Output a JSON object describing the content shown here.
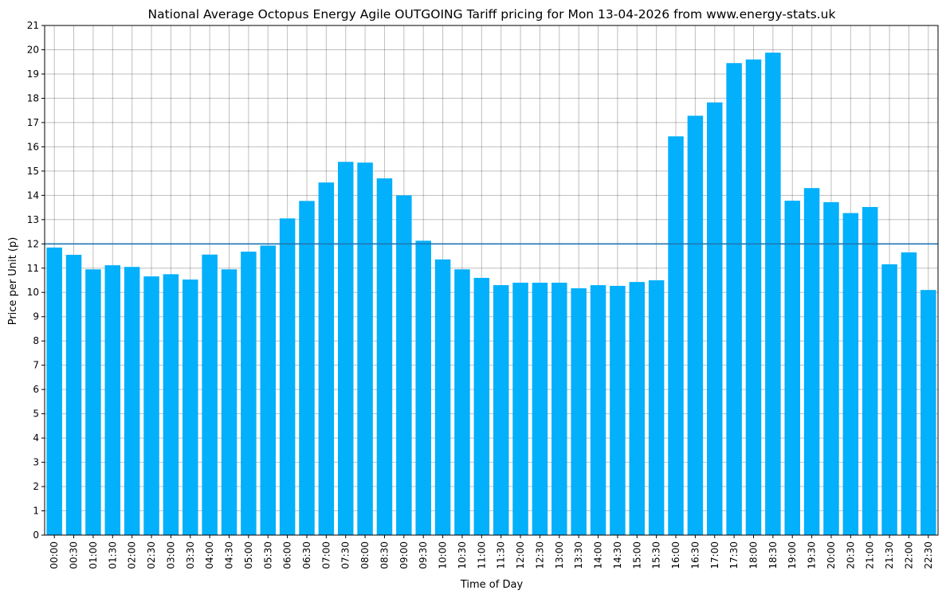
{
  "chart_data": {
    "type": "bar",
    "title": "National Average Octopus Energy Agile OUTGOING Tariff pricing for Mon 13-04-2026 from www.energy-stats.uk",
    "xlabel": "Time of Day",
    "ylabel": "Price per Unit (p)",
    "ylim": [
      0,
      21
    ],
    "yticks": [
      "0",
      "1",
      "2",
      "3",
      "4",
      "5",
      "6",
      "7",
      "8",
      "9",
      "10",
      "11",
      "12",
      "13",
      "14",
      "15",
      "16",
      "17",
      "18",
      "19",
      "20",
      "21"
    ],
    "grid": true,
    "bar_color": "#03b0fb",
    "reference_line": {
      "value": 12.0,
      "color": "#1f77b4"
    },
    "categories": [
      "00:00",
      "00:30",
      "01:00",
      "01:30",
      "02:00",
      "02:30",
      "03:00",
      "03:30",
      "04:00",
      "04:30",
      "05:00",
      "05:30",
      "06:00",
      "06:30",
      "07:00",
      "07:30",
      "08:00",
      "08:30",
      "09:00",
      "09:30",
      "10:00",
      "10:30",
      "11:00",
      "11:30",
      "12:00",
      "12:30",
      "13:00",
      "13:30",
      "14:00",
      "14:30",
      "15:00",
      "15:30",
      "16:00",
      "16:30",
      "17:00",
      "17:30",
      "18:00",
      "18:30",
      "19:00",
      "19:30",
      "20:00",
      "20:30",
      "21:00",
      "21:30",
      "22:00",
      "22:30"
    ],
    "values": [
      11.85,
      11.55,
      10.95,
      11.12,
      11.05,
      10.66,
      10.75,
      10.53,
      11.56,
      10.95,
      11.68,
      11.93,
      13.05,
      13.77,
      14.53,
      15.38,
      15.35,
      14.7,
      14.0,
      12.13,
      11.36,
      10.95,
      10.6,
      10.3,
      10.4,
      10.4,
      10.4,
      10.17,
      10.3,
      10.27,
      10.43,
      10.5,
      16.43,
      17.28,
      17.83,
      19.45,
      19.6,
      19.88,
      13.78,
      14.3,
      13.72,
      13.27,
      13.52,
      11.16,
      11.65,
      10.1
    ]
  }
}
